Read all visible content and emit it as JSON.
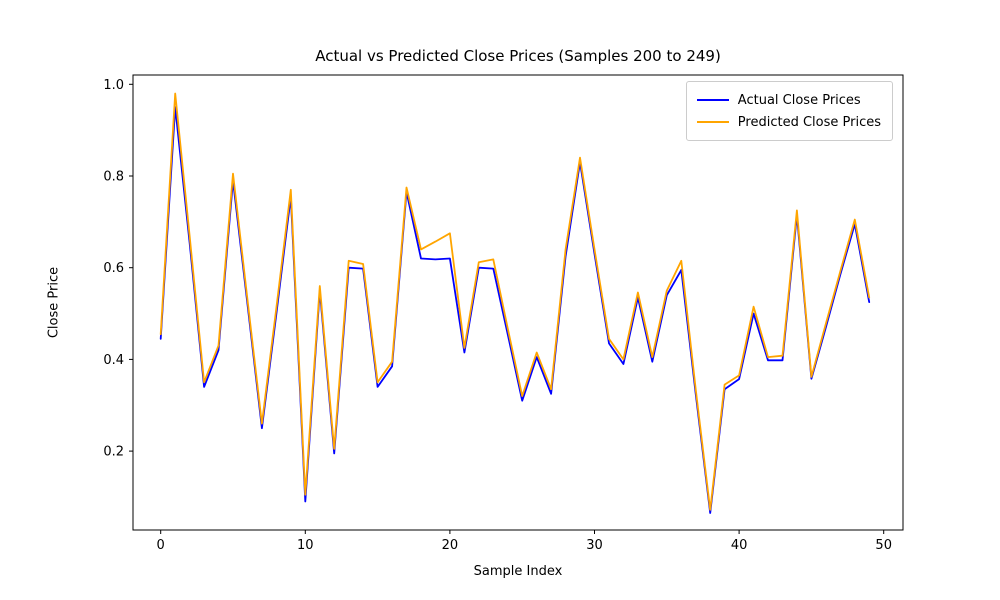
{
  "title": "Actual vs Predicted Close Prices (Samples 200 to 249)",
  "colors": {
    "actual": "#0000ff",
    "predicted": "#ffa500",
    "axis": "#000000",
    "legend_border": "#cccccc"
  },
  "legend": {
    "position": "upper right",
    "entries": [
      {
        "label": "Actual Close Prices",
        "color": "#0000ff"
      },
      {
        "label": "Predicted Close Prices",
        "color": "#ffa500"
      }
    ]
  },
  "chart_data": {
    "type": "line",
    "title": "Actual vs Predicted Close Prices (Samples 200 to 249)",
    "xlabel": "Sample Index",
    "ylabel": "Close Price",
    "x_ticks": [
      0,
      10,
      20,
      30,
      40,
      50
    ],
    "y_ticks": [
      0.2,
      0.4,
      0.6,
      0.8,
      1.0
    ],
    "xlim": [
      -2.0,
      51.3
    ],
    "ylim": [
      0.028,
      1.02
    ],
    "grid": false,
    "legend_position": "upper right",
    "x": [
      0,
      1,
      2,
      3,
      4,
      5,
      6,
      7,
      8,
      9,
      10,
      11,
      12,
      13,
      14,
      15,
      16,
      17,
      18,
      19,
      20,
      21,
      22,
      23,
      24,
      25,
      26,
      27,
      28,
      29,
      30,
      31,
      32,
      33,
      34,
      35,
      36,
      37,
      38,
      39,
      40,
      41,
      42,
      43,
      44,
      45,
      46,
      47,
      48,
      49
    ],
    "series": [
      {
        "name": "Actual Close Prices",
        "color": "#0000ff",
        "values": [
          0.445,
          0.95,
          0.655,
          0.34,
          0.42,
          0.79,
          0.52,
          0.25,
          0.5,
          0.755,
          0.09,
          0.55,
          0.195,
          0.6,
          0.598,
          0.34,
          0.385,
          0.765,
          0.62,
          0.618,
          0.62,
          0.415,
          0.6,
          0.598,
          0.455,
          0.31,
          0.405,
          0.325,
          0.625,
          0.83,
          0.63,
          0.435,
          0.39,
          0.535,
          0.395,
          0.54,
          0.595,
          0.325,
          0.065,
          0.335,
          0.357,
          0.5,
          0.398,
          0.398,
          0.715,
          0.358,
          0.47,
          0.585,
          0.695,
          0.525
        ]
      },
      {
        "name": "Predicted Close Prices",
        "color": "#ffa500",
        "values": [
          0.455,
          0.98,
          0.67,
          0.35,
          0.43,
          0.805,
          0.53,
          0.26,
          0.513,
          0.77,
          0.105,
          0.56,
          0.205,
          0.615,
          0.608,
          0.35,
          0.395,
          0.775,
          0.64,
          0.657,
          0.675,
          0.425,
          0.612,
          0.618,
          0.468,
          0.32,
          0.415,
          0.335,
          0.64,
          0.84,
          0.64,
          0.445,
          0.4,
          0.546,
          0.405,
          0.55,
          0.615,
          0.335,
          0.072,
          0.345,
          0.365,
          0.515,
          0.405,
          0.408,
          0.725,
          0.362,
          0.478,
          0.592,
          0.705,
          0.535
        ]
      }
    ]
  }
}
